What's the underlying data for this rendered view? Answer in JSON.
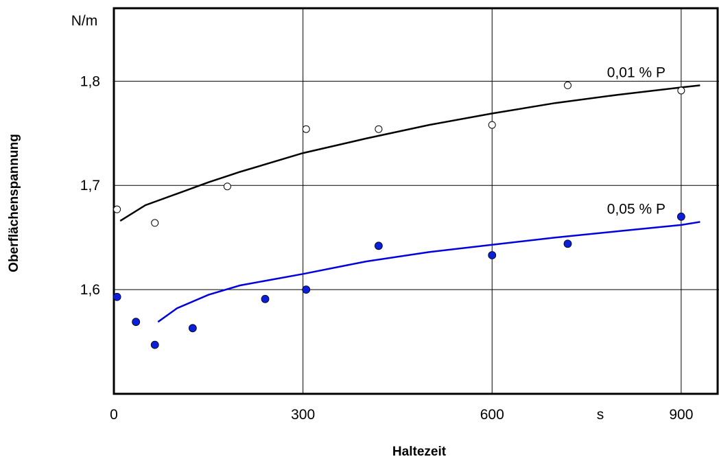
{
  "chart_data": {
    "type": "scatter",
    "title": "",
    "xlabel": "Haltezeit",
    "ylabel": "Oberflächenspannung",
    "x_unit": "s",
    "y_unit": "N/m",
    "xlim": [
      0,
      960
    ],
    "ylim": [
      1.5,
      1.87
    ],
    "xticks": [
      {
        "value": 0,
        "label": "0"
      },
      {
        "value": 300,
        "label": "300"
      },
      {
        "value": 600,
        "label": "600"
      },
      {
        "value": 900,
        "label": "900"
      }
    ],
    "yticks": [
      {
        "value": 1.6,
        "label": "1,6"
      },
      {
        "value": 1.7,
        "label": "1,7"
      },
      {
        "value": 1.8,
        "label": "1,8"
      }
    ],
    "grid": true,
    "series": [
      {
        "name": "0,01 % P",
        "color": "#000000",
        "marker": "open-circle",
        "points": [
          {
            "x": 5,
            "y": 1.677
          },
          {
            "x": 65,
            "y": 1.664
          },
          {
            "x": 180,
            "y": 1.699
          },
          {
            "x": 305,
            "y": 1.754
          },
          {
            "x": 420,
            "y": 1.754
          },
          {
            "x": 600,
            "y": 1.758
          },
          {
            "x": 720,
            "y": 1.796
          },
          {
            "x": 900,
            "y": 1.791
          }
        ],
        "fit": [
          {
            "x": 10,
            "y": 1.666
          },
          {
            "x": 50,
            "y": 1.681
          },
          {
            "x": 100,
            "y": 1.692
          },
          {
            "x": 150,
            "y": 1.703
          },
          {
            "x": 200,
            "y": 1.713
          },
          {
            "x": 300,
            "y": 1.731
          },
          {
            "x": 400,
            "y": 1.745
          },
          {
            "x": 500,
            "y": 1.758
          },
          {
            "x": 600,
            "y": 1.769
          },
          {
            "x": 700,
            "y": 1.779
          },
          {
            "x": 800,
            "y": 1.787
          },
          {
            "x": 900,
            "y": 1.794
          },
          {
            "x": 930,
            "y": 1.796
          }
        ]
      },
      {
        "name": "0,05 % P",
        "color": "#0000dd",
        "fill": "#0b1fd8",
        "marker": "filled-circle",
        "points": [
          {
            "x": 5,
            "y": 1.593
          },
          {
            "x": 35,
            "y": 1.569
          },
          {
            "x": 65,
            "y": 1.547
          },
          {
            "x": 125,
            "y": 1.563
          },
          {
            "x": 240,
            "y": 1.591
          },
          {
            "x": 305,
            "y": 1.6
          },
          {
            "x": 420,
            "y": 1.642
          },
          {
            "x": 600,
            "y": 1.633
          },
          {
            "x": 720,
            "y": 1.644
          },
          {
            "x": 900,
            "y": 1.67
          }
        ],
        "fit": [
          {
            "x": 70,
            "y": 1.569
          },
          {
            "x": 100,
            "y": 1.582
          },
          {
            "x": 150,
            "y": 1.595
          },
          {
            "x": 200,
            "y": 1.604
          },
          {
            "x": 300,
            "y": 1.615
          },
          {
            "x": 400,
            "y": 1.627
          },
          {
            "x": 500,
            "y": 1.636
          },
          {
            "x": 600,
            "y": 1.643
          },
          {
            "x": 700,
            "y": 1.65
          },
          {
            "x": 800,
            "y": 1.656
          },
          {
            "x": 900,
            "y": 1.662
          },
          {
            "x": 930,
            "y": 1.665
          }
        ]
      }
    ]
  }
}
